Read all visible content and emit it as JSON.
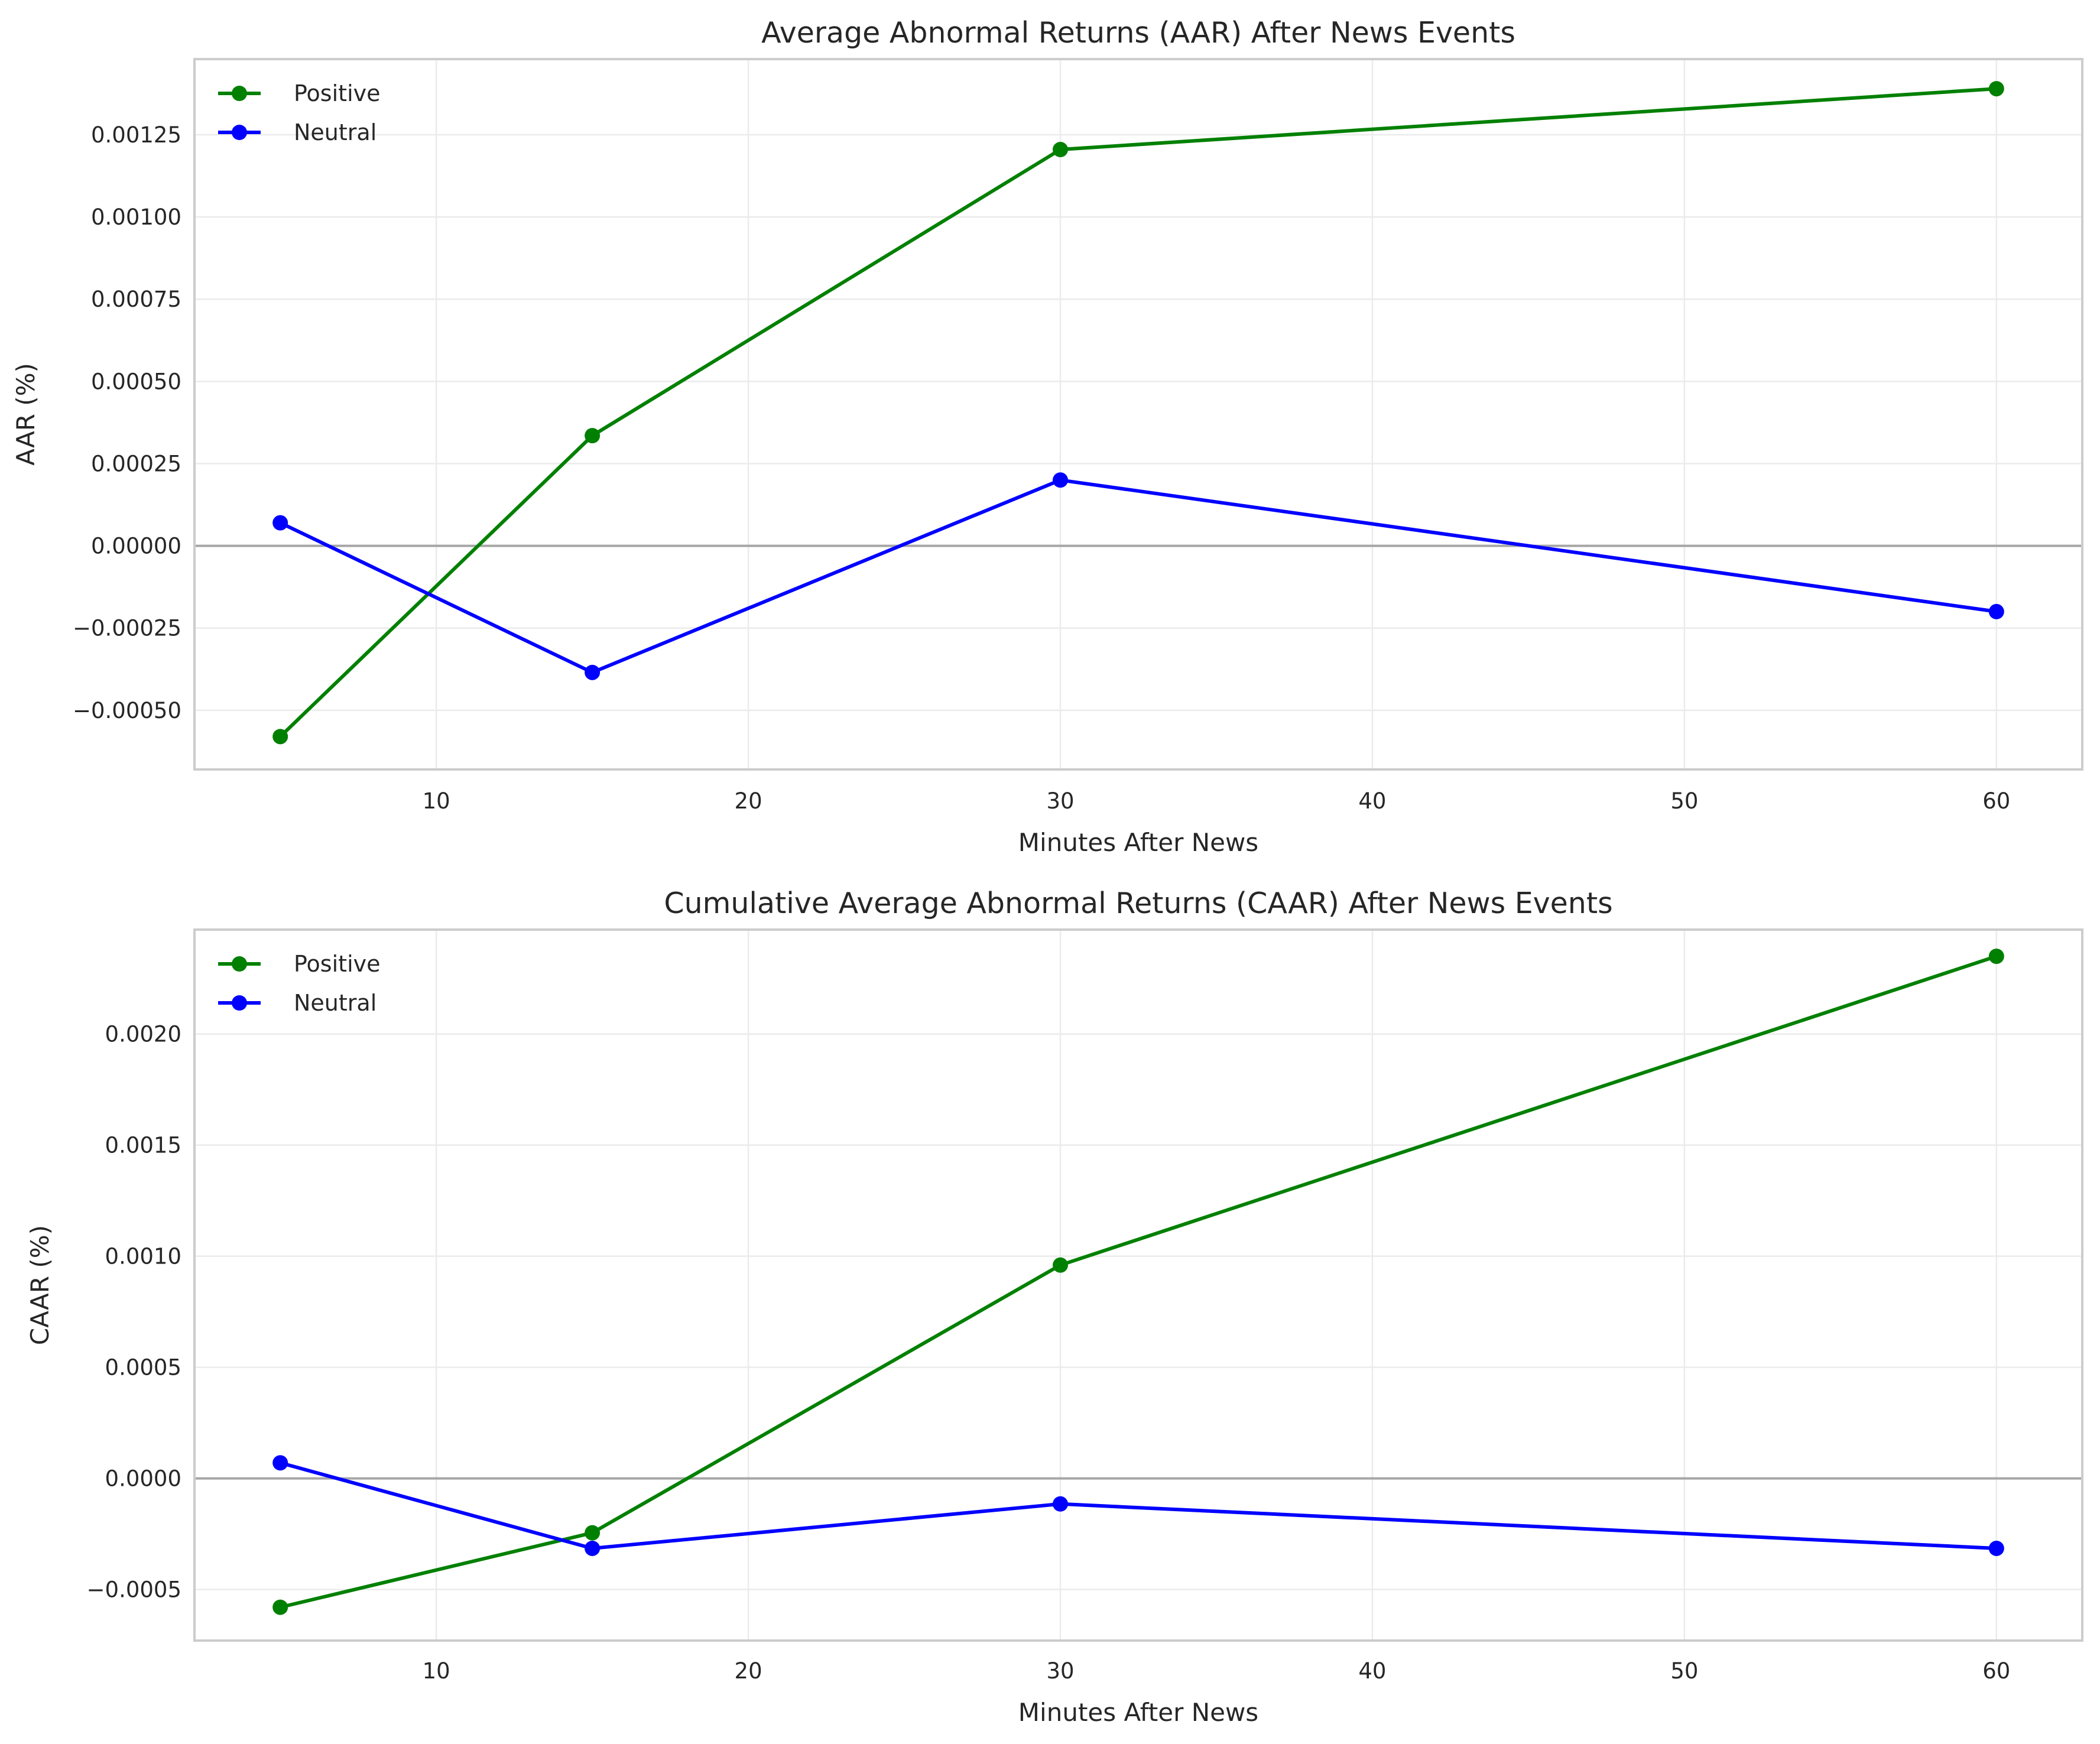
{
  "chart_data": [
    {
      "type": "line",
      "title": "Average Abnormal Returns (AAR) After News Events",
      "xlabel": "Minutes After News",
      "ylabel": "AAR (%)",
      "x": [
        5,
        15,
        30,
        60
      ],
      "series": [
        {
          "name": "Positive",
          "color": "#008000",
          "values": [
            -0.00058,
            0.000335,
            0.001205,
            0.00139
          ]
        },
        {
          "name": "Neutral",
          "color": "#0000ff",
          "values": [
            7e-05,
            -0.000385,
            0.0002,
            -0.0002
          ]
        }
      ],
      "xlim": [
        2.25,
        62.75
      ],
      "ylim": [
        -0.00068,
        0.00148
      ],
      "xticks": [
        10,
        20,
        30,
        40,
        50,
        60
      ],
      "xtick_labels": [
        "10",
        "20",
        "30",
        "40",
        "50",
        "60"
      ],
      "yticks": [
        -0.0005,
        -0.00025,
        0,
        0.00025,
        0.0005,
        0.00075,
        0.001,
        0.00125
      ],
      "ytick_labels": [
        "−0.00050",
        "−0.00025",
        "0.00000",
        "0.00025",
        "0.00050",
        "0.00075",
        "0.00100",
        "0.00125"
      ],
      "reference_line": 0,
      "grid": true,
      "legend_position": "top-left"
    },
    {
      "type": "line",
      "title": "Cumulative Average Abnormal Returns (CAAR) After News Events",
      "xlabel": "Minutes After News",
      "ylabel": "CAAR (%)",
      "x": [
        5,
        15,
        30,
        60
      ],
      "series": [
        {
          "name": "Positive",
          "color": "#008000",
          "values": [
            -0.00058,
            -0.000245,
            0.00096,
            0.00235
          ]
        },
        {
          "name": "Neutral",
          "color": "#0000ff",
          "values": [
            7e-05,
            -0.000315,
            -0.000115,
            -0.000315
          ]
        }
      ],
      "xlim": [
        2.25,
        62.75
      ],
      "ylim": [
        -0.00073,
        0.00247
      ],
      "xticks": [
        10,
        20,
        30,
        40,
        50,
        60
      ],
      "xtick_labels": [
        "10",
        "20",
        "30",
        "40",
        "50",
        "60"
      ],
      "yticks": [
        -0.0005,
        0,
        0.0005,
        0.001,
        0.0015,
        0.002
      ],
      "ytick_labels": [
        "−0.0005",
        "0.0000",
        "0.0005",
        "0.0010",
        "0.0015",
        "0.0020"
      ],
      "reference_line": 0,
      "grid": true,
      "legend_position": "top-left"
    }
  ]
}
